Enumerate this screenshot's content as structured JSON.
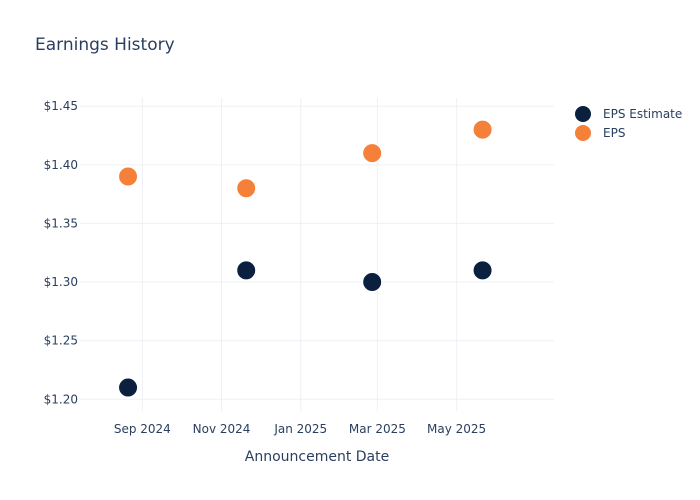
{
  "chart_data": {
    "type": "scatter",
    "title": "Earnings History",
    "xlabel": "Announcement Date",
    "ylabel": "",
    "x_type": "date",
    "xlim": [
      "2024-07-15",
      "2025-07-15"
    ],
    "ylim": [
      1.19,
      1.457
    ],
    "x_ticks": [
      {
        "value": "2024-09-01",
        "label": "Sep 2024"
      },
      {
        "value": "2024-11-01",
        "label": "Nov 2024"
      },
      {
        "value": "2025-01-01",
        "label": "Jan 2025"
      },
      {
        "value": "2025-03-01",
        "label": "Mar 2025"
      },
      {
        "value": "2025-05-01",
        "label": "May 2025"
      }
    ],
    "y_ticks": [
      {
        "value": 1.2,
        "label": "$1.20"
      },
      {
        "value": 1.25,
        "label": "$1.25"
      },
      {
        "value": 1.3,
        "label": "$1.30"
      },
      {
        "value": 1.35,
        "label": "$1.35"
      },
      {
        "value": 1.4,
        "label": "$1.40"
      },
      {
        "value": 1.45,
        "label": "$1.45"
      }
    ],
    "grid": true,
    "legend_position": "top-right",
    "series": [
      {
        "name": "EPS Estimate",
        "color": "#0b1f3f",
        "points": [
          {
            "x": "2024-08-21",
            "y": 1.21
          },
          {
            "x": "2024-11-20",
            "y": 1.31
          },
          {
            "x": "2025-02-25",
            "y": 1.3
          },
          {
            "x": "2025-05-21",
            "y": 1.31
          }
        ]
      },
      {
        "name": "EPS",
        "color": "#f5803a",
        "points": [
          {
            "x": "2024-08-21",
            "y": 1.39
          },
          {
            "x": "2024-11-20",
            "y": 1.38
          },
          {
            "x": "2025-02-25",
            "y": 1.41
          },
          {
            "x": "2025-05-21",
            "y": 1.43
          }
        ]
      }
    ]
  }
}
